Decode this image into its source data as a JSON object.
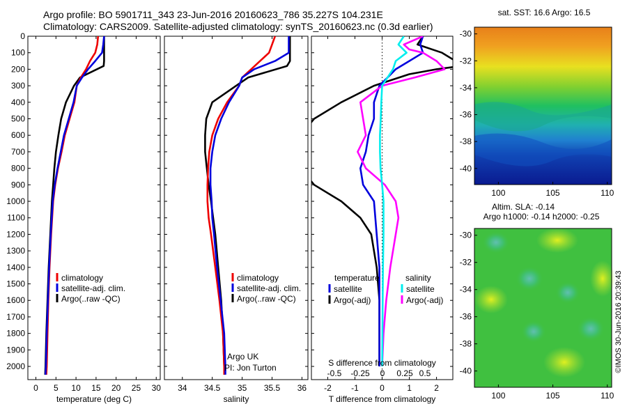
{
  "header": {
    "line1": "Argo profile: BO 5901711_343 23-Jun-2016 20160623_786 35.227S 104.231E",
    "line2": "Climatology: CARS2009. Satellite-adjusted climatology: synTS_20160623.nc (0.3d earlier)"
  },
  "colors": {
    "climatology": "#ee0000",
    "satellite": "#0000dd",
    "argo": "#000000",
    "sal_satellite": "#00eeee",
    "sal_argo": "#ff00ff"
  },
  "chart_data": [
    {
      "id": "temperature",
      "type": "line",
      "xlabel": "temperature (deg C)",
      "xlim": [
        -2,
        31
      ],
      "xticks": [
        0,
        5,
        10,
        15,
        20,
        25,
        30
      ],
      "ylim": [
        0,
        2080
      ],
      "yticks": [
        0,
        100,
        200,
        300,
        400,
        500,
        600,
        700,
        800,
        900,
        1000,
        1100,
        1200,
        1300,
        1400,
        1500,
        1600,
        1700,
        1800,
        1900,
        2000
      ],
      "legend": [
        "climatology",
        "satellite-adj. clim.",
        "Argo(..raw -QC)"
      ],
      "series": [
        {
          "name": "climatology",
          "depth": [
            0,
            50,
            100,
            150,
            200,
            250,
            300,
            400,
            500,
            600,
            700,
            800,
            900,
            1000,
            1200,
            1400,
            1600,
            1800,
            2000,
            2050
          ],
          "values": [
            15.5,
            15.3,
            14.8,
            13.5,
            12.5,
            11.2,
            10.2,
            9.6,
            8.4,
            7.2,
            6.4,
            5.5,
            4.8,
            4.3,
            3.8,
            3.4,
            3.1,
            2.9,
            2.7,
            2.6
          ]
        },
        {
          "name": "satellite-adj. clim.",
          "depth": [
            0,
            50,
            100,
            150,
            200,
            250,
            300,
            400,
            500,
            600,
            700,
            800,
            900,
            1000,
            1200,
            1400,
            1600,
            1800,
            2000,
            2050
          ],
          "values": [
            17,
            16.8,
            16.5,
            14.8,
            13,
            11.5,
            10.2,
            9.4,
            8.2,
            7,
            6.2,
            5.4,
            4.7,
            4.2,
            3.7,
            3.3,
            3,
            2.7,
            2.5,
            2.4
          ]
        },
        {
          "name": "Argo(..raw -QC)",
          "depth": [
            0,
            50,
            100,
            150,
            180,
            250,
            300,
            400,
            500,
            600,
            700,
            800,
            900,
            1000,
            1200,
            1400,
            1600,
            1800,
            2000,
            2050
          ],
          "values": [
            17,
            17,
            17,
            17,
            16.9,
            11,
            9.5,
            7.5,
            6.3,
            5.6,
            5,
            4.6,
            4.3,
            4,
            3.6,
            3.2,
            2.9,
            2.6,
            2.4,
            2.3
          ]
        }
      ]
    },
    {
      "id": "salinity",
      "type": "line",
      "xlabel": "salinity",
      "xlim": [
        33.7,
        36.1
      ],
      "xticks": [
        34,
        34.5,
        35,
        35.5,
        36
      ],
      "ylim": [
        0,
        2080
      ],
      "legend": [
        "climatology",
        "satellite-adj. clim.",
        "Argo(..raw -QC)"
      ],
      "annotations": [
        "Argo UK",
        "PI: Jon Turton"
      ],
      "series": [
        {
          "name": "climatology",
          "depth": [
            0,
            50,
            100,
            150,
            200,
            250,
            300,
            400,
            500,
            600,
            700,
            800,
            900,
            1000,
            1100,
            1200,
            1400,
            1600,
            1800,
            2000,
            2050
          ],
          "values": [
            35.55,
            35.5,
            35.45,
            35.3,
            35.15,
            35,
            34.95,
            34.75,
            34.6,
            34.5,
            34.45,
            34.43,
            34.42,
            34.42,
            34.44,
            34.48,
            34.55,
            34.62,
            34.68,
            34.7,
            34.7
          ]
        },
        {
          "name": "satellite-adj. clim.",
          "depth": [
            0,
            50,
            100,
            150,
            200,
            250,
            300,
            400,
            500,
            600,
            700,
            800,
            900,
            1000,
            1100,
            1200,
            1400,
            1600,
            1800,
            2000,
            2050
          ],
          "values": [
            35.78,
            35.78,
            35.78,
            35.55,
            35.2,
            35,
            34.95,
            34.78,
            34.65,
            34.55,
            34.5,
            34.47,
            34.47,
            34.49,
            34.5,
            34.53,
            34.58,
            34.64,
            34.7,
            34.72,
            34.72
          ]
        },
        {
          "name": "Argo(..raw -QC)",
          "depth": [
            0,
            50,
            100,
            150,
            180,
            250,
            300,
            400,
            500,
            600,
            700,
            800,
            900,
            1000,
            1200,
            1400,
            1600,
            1800,
            2000,
            2050
          ],
          "values": [
            35.8,
            35.8,
            35.8,
            35.8,
            35.75,
            35.1,
            34.9,
            34.5,
            34.4,
            34.38,
            34.38,
            34.41,
            34.44,
            34.48,
            34.55,
            34.6,
            34.65,
            34.68,
            34.7,
            34.7
          ]
        }
      ]
    },
    {
      "id": "difference",
      "type": "line",
      "xlabel": "T difference from climatology",
      "xlabel2": "S difference from climatology",
      "xlim": [
        -2.6,
        2.6
      ],
      "xticks": [
        -2,
        -1,
        0,
        1,
        2
      ],
      "s_ticks": [
        "-0.5",
        "-0.25",
        "0",
        "0.25",
        "0.5"
      ],
      "ylim": [
        0,
        2080
      ],
      "legend_titles": [
        "temperature",
        "salinity"
      ],
      "legend": [
        "satellite",
        "Argo(-adj)",
        "satellite",
        "Argo(-adj)"
      ],
      "series": [
        {
          "name": "satellite",
          "depth": [
            0,
            50,
            100,
            150,
            200,
            250,
            300,
            400,
            500,
            600,
            700,
            800,
            900,
            1000,
            1200,
            1400,
            1600,
            1800,
            2000
          ],
          "values": [
            1.5,
            1.4,
            1.5,
            1.0,
            0.5,
            0.2,
            -0.1,
            -0.3,
            -0.3,
            -0.5,
            -0.6,
            -0.8,
            -0.7,
            -0.3,
            -0.2,
            -0.1,
            -0.1,
            -0.1,
            -0.1
          ]
        },
        {
          "name": "Argo(-adj)",
          "depth": [
            0,
            50,
            100,
            150,
            180,
            200,
            230,
            300,
            400,
            500,
            600,
            800,
            900,
            1000,
            1100,
            1200,
            1400,
            1600,
            1800,
            2000
          ],
          "values": [
            1.5,
            1.3,
            2.2,
            2.7,
            2.9,
            2.0,
            1.0,
            -0.3,
            -1.5,
            -2.5,
            -3,
            -3,
            -2.5,
            -1.5,
            -0.8,
            -0.4,
            -0.2,
            -0.1,
            -0.1,
            -0.1
          ]
        },
        {
          "name": "satellite",
          "depth": [
            0,
            50,
            100,
            150,
            200,
            300,
            400,
            500,
            600,
            700,
            800,
            900,
            1000,
            1200,
            1400,
            1600,
            1800,
            2000
          ],
          "values": [
            0.8,
            0.6,
            0.9,
            0.5,
            0.4,
            0.0,
            -0.03,
            -0.05,
            -0.08,
            -0.08,
            -0.06,
            0.0,
            0.05,
            0.05,
            0.03,
            0.02,
            0.01,
            0.0
          ]
        },
        {
          "name": "Argo(-adj)",
          "depth": [
            0,
            50,
            80,
            100,
            150,
            200,
            250,
            300,
            400,
            500,
            600,
            700,
            800,
            900,
            1000,
            1100,
            1200,
            1400,
            1600,
            1800,
            2000
          ],
          "values": [
            1.5,
            0.8,
            1.0,
            1.5,
            2.0,
            2.3,
            1.2,
            0.0,
            -0.8,
            -0.7,
            -0.6,
            -0.9,
            -0.6,
            0.1,
            0.5,
            0.6,
            0.5,
            0.3,
            0.15,
            0.05,
            0.0
          ]
        }
      ]
    },
    {
      "id": "sst-map",
      "type": "heatmap",
      "title": "sat. SST: 16.6 Argo: 16.5",
      "xticks": [
        100,
        105,
        110
      ],
      "yticks": [
        -30,
        -32,
        -34,
        -36,
        -38,
        -40
      ]
    },
    {
      "id": "sla-map",
      "type": "heatmap",
      "title": "Altim. SLA: -0.14",
      "subtitle": "Argo h1000: -0.14 h2000: -0.25",
      "xticks": [
        100,
        105,
        110
      ],
      "yticks": [
        -30,
        -32,
        -34,
        -36,
        -38,
        -40
      ],
      "credit": "©IMOS 30-Jun-2016 20:39:43"
    }
  ]
}
